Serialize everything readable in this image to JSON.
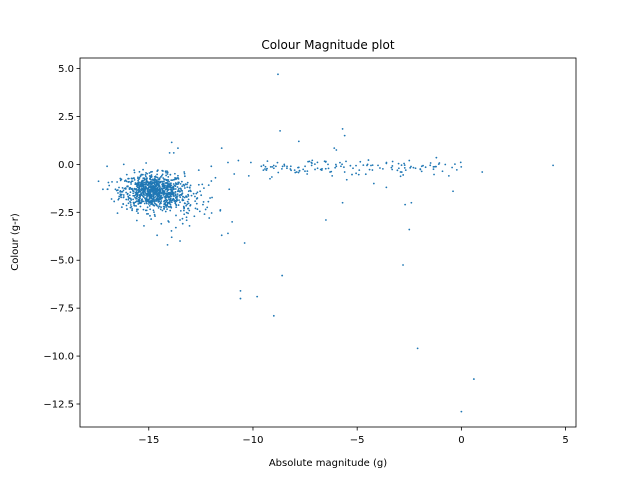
{
  "chart_data": {
    "type": "scatter",
    "title": "Colour Magnitude plot",
    "xlabel": "Absolute magnitude (g)",
    "ylabel": "Colour (g-r)",
    "xlim": [
      -18.3,
      5.5
    ],
    "ylim": [
      -13.7,
      5.55
    ],
    "xticks": [
      -15,
      -10,
      -5,
      0,
      5
    ],
    "xtick_labels": [
      "−15",
      "−10",
      "−5",
      "0",
      "5"
    ],
    "yticks": [
      5.0,
      2.5,
      0.0,
      -2.5,
      -5.0,
      -7.5,
      -10.0,
      -12.5
    ],
    "ytick_labels": [
      "5.0",
      "2.5",
      "0.0",
      "−2.5",
      "−5.0",
      "−7.5",
      "−10.0",
      "−12.5"
    ],
    "grid": false,
    "marker_color": "#1f77b4",
    "series": [
      {
        "points": [
          [
            -8.8,
            4.7
          ],
          [
            -8.7,
            1.75
          ],
          [
            -5.7,
            1.85
          ],
          [
            -5.6,
            1.5
          ],
          [
            -7.8,
            1.2
          ],
          [
            -13.9,
            1.15
          ],
          [
            -11.5,
            0.85
          ],
          [
            -6.1,
            0.85
          ],
          [
            -13.6,
            0.85
          ],
          [
            -13.8,
            0.6
          ],
          [
            -14.0,
            0.6
          ],
          [
            -6.0,
            0.75
          ],
          [
            4.4,
            -0.05
          ],
          [
            1.0,
            -0.4
          ],
          [
            -1.2,
            0.35
          ],
          [
            -2.5,
            0.2
          ],
          [
            -1.9,
            -0.1
          ],
          [
            -3.3,
            0.15
          ],
          [
            -3.6,
            0.05
          ],
          [
            -4.0,
            -0.05
          ],
          [
            -4.5,
            0.0
          ],
          [
            -3.0,
            -0.2
          ],
          [
            -2.2,
            -0.2
          ],
          [
            -0.6,
            -0.6
          ],
          [
            -0.4,
            -1.4
          ],
          [
            -2.4,
            -2.0
          ],
          [
            -2.7,
            -2.1
          ],
          [
            -3.6,
            -1.2
          ],
          [
            -4.2,
            -1.0
          ],
          [
            -5.7,
            -2.0
          ],
          [
            -6.5,
            -2.9
          ],
          [
            -2.5,
            -3.4
          ],
          [
            -2.8,
            -5.25
          ],
          [
            -2.1,
            -9.6
          ],
          [
            0.6,
            -11.2
          ],
          [
            0.0,
            -12.9
          ],
          [
            -10.6,
            -6.6
          ],
          [
            -10.6,
            -7.0
          ],
          [
            -9.8,
            -6.9
          ],
          [
            -9.0,
            -7.9
          ],
          [
            -8.6,
            -5.8
          ],
          [
            -10.4,
            -4.1
          ],
          [
            -11.2,
            -3.6
          ],
          [
            -11.5,
            -3.7
          ],
          [
            -11.0,
            -3.0
          ],
          [
            -12.1,
            -2.8
          ],
          [
            -12.4,
            -2.1
          ],
          [
            -12.7,
            -1.8
          ],
          [
            -13.1,
            -2.3
          ],
          [
            -13.3,
            -2.6
          ],
          [
            -13.5,
            -2.9
          ],
          [
            -13.7,
            -3.3
          ],
          [
            -13.9,
            -3.8
          ],
          [
            -14.1,
            -4.2
          ],
          [
            -13.5,
            -4.0
          ],
          [
            -14.6,
            -3.7
          ],
          [
            -14.4,
            -3.1
          ],
          [
            -14.7,
            -2.7
          ],
          [
            -15.1,
            -2.4
          ],
          [
            -15.4,
            -2.2
          ],
          [
            -15.8,
            -2.4
          ],
          [
            -16.2,
            -1.6
          ],
          [
            -16.6,
            -1.3
          ],
          [
            -16.9,
            -1.1
          ],
          [
            -17.2,
            -1.3
          ],
          [
            -17.0,
            -0.1
          ],
          [
            -16.2,
            0.0
          ],
          [
            -15.7,
            -0.3
          ],
          [
            -14.9,
            -0.4
          ],
          [
            -14.1,
            -0.5
          ],
          [
            -13.3,
            -0.4
          ],
          [
            -12.6,
            -0.3
          ],
          [
            -12.0,
            -0.1
          ],
          [
            -11.2,
            0.1
          ],
          [
            -10.7,
            0.2
          ],
          [
            -10.1,
            0.1
          ],
          [
            -9.6,
            -0.1
          ],
          [
            -9.0,
            -0.2
          ],
          [
            -8.5,
            0.0
          ],
          [
            -8.0,
            -0.3
          ],
          [
            -7.5,
            -0.1
          ],
          [
            -7.2,
            0.1
          ],
          [
            -6.9,
            -0.2
          ],
          [
            -6.4,
            0.0
          ],
          [
            -6.0,
            -0.1
          ],
          [
            -5.6,
            -0.4
          ],
          [
            -5.2,
            -0.2
          ],
          [
            -4.9,
            -0.3
          ],
          [
            -11.8,
            -0.7
          ],
          [
            -10.9,
            -0.5
          ],
          [
            -10.2,
            -0.6
          ],
          [
            -9.5,
            -0.3
          ],
          [
            -8.9,
            -0.1
          ],
          [
            -7.9,
            -0.4
          ],
          [
            -7.4,
            -0.5
          ],
          [
            -6.7,
            -0.3
          ],
          [
            -6.2,
            -0.6
          ],
          [
            -5.5,
            -0.8
          ]
        ]
      }
    ]
  }
}
